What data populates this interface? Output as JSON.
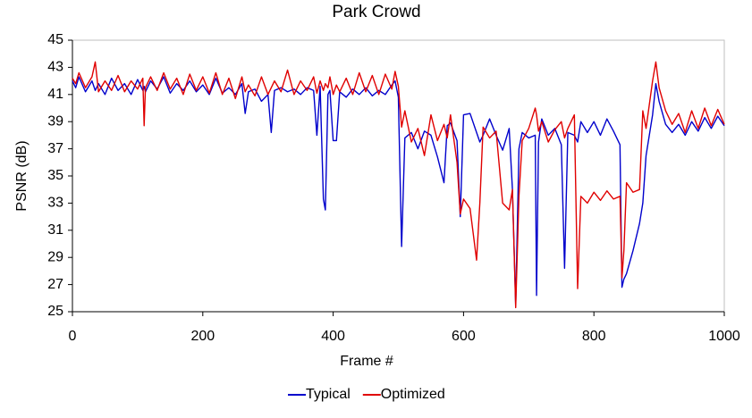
{
  "chart_data": {
    "type": "line",
    "title": "Park Crowd",
    "xlabel": "Frame #",
    "ylabel": "PSNR (dB)",
    "x": [
      0,
      5,
      10,
      20,
      30,
      35,
      40,
      50,
      60,
      70,
      80,
      90,
      100,
      108,
      110,
      112,
      120,
      130,
      140,
      150,
      160,
      170,
      180,
      190,
      200,
      210,
      220,
      230,
      240,
      250,
      260,
      265,
      270,
      280,
      290,
      300,
      305,
      310,
      320,
      330,
      340,
      350,
      360,
      370,
      375,
      380,
      385,
      388,
      392,
      395,
      400,
      405,
      410,
      420,
      430,
      440,
      450,
      460,
      470,
      480,
      490,
      495,
      500,
      505,
      510,
      520,
      530,
      540,
      550,
      560,
      570,
      575,
      580,
      590,
      595,
      600,
      610,
      620,
      625,
      630,
      640,
      650,
      660,
      670,
      675,
      680,
      685,
      690,
      700,
      710,
      712,
      715,
      720,
      730,
      740,
      750,
      755,
      760,
      770,
      775,
      780,
      790,
      800,
      810,
      820,
      830,
      840,
      843,
      846,
      850,
      860,
      870,
      875,
      880,
      890,
      895,
      900,
      910,
      920,
      930,
      940,
      950,
      960,
      970,
      980,
      990,
      1000
    ],
    "series": [
      {
        "name": "Typical",
        "color": "#0000cc",
        "values": [
          42.0,
          41.5,
          42.3,
          41.2,
          42.0,
          41.3,
          41.8,
          41.0,
          42.2,
          41.3,
          41.8,
          41.0,
          42.1,
          41.3,
          41.6,
          41.2,
          42.0,
          41.4,
          42.3,
          41.1,
          41.8,
          41.3,
          42.0,
          41.2,
          41.7,
          41.0,
          42.2,
          41.1,
          41.5,
          41.0,
          41.8,
          39.6,
          41.2,
          41.4,
          40.5,
          41.0,
          38.2,
          41.3,
          41.5,
          41.2,
          41.4,
          41.0,
          41.5,
          41.3,
          38.0,
          41.6,
          33.3,
          32.5,
          41.0,
          41.3,
          37.6,
          37.6,
          41.2,
          40.8,
          41.4,
          41.0,
          41.5,
          40.9,
          41.3,
          41.0,
          41.7,
          42.0,
          40.8,
          29.8,
          37.8,
          38.2,
          37.0,
          38.3,
          38.0,
          36.4,
          34.5,
          38.7,
          38.9,
          37.6,
          32.0,
          39.5,
          39.6,
          38.2,
          37.5,
          38.0,
          39.2,
          38.0,
          36.9,
          38.5,
          34.0,
          25.5,
          37.0,
          38.2,
          37.8,
          38.0,
          26.2,
          37.5,
          39.2,
          38.0,
          38.5,
          37.3,
          28.2,
          38.2,
          38.0,
          37.5,
          39.0,
          38.2,
          39.0,
          38.0,
          39.2,
          38.3,
          37.3,
          26.8,
          27.4,
          27.8,
          29.5,
          31.5,
          33.0,
          36.5,
          39.5,
          41.8,
          40.5,
          38.8,
          38.2,
          38.8,
          38.0,
          39.0,
          38.3,
          39.3,
          38.5,
          39.4,
          38.7
        ]
      },
      {
        "name": "Optimized",
        "color": "#e00000",
        "values": [
          42.2,
          41.8,
          42.6,
          41.5,
          42.3,
          43.4,
          41.2,
          42.0,
          41.3,
          42.4,
          41.2,
          42.0,
          41.4,
          42.2,
          38.7,
          41.5,
          42.3,
          41.3,
          42.6,
          41.4,
          42.2,
          41.0,
          42.5,
          41.3,
          42.3,
          41.1,
          42.6,
          41.0,
          42.2,
          40.7,
          42.3,
          41.2,
          41.7,
          40.9,
          42.3,
          41.0,
          41.5,
          42.0,
          41.2,
          42.8,
          41.0,
          42.0,
          41.3,
          42.3,
          41.1,
          42.0,
          41.3,
          41.8,
          41.5,
          42.3,
          41.0,
          41.7,
          41.2,
          42.2,
          41.0,
          42.6,
          41.2,
          42.4,
          41.0,
          42.5,
          41.4,
          42.7,
          41.6,
          38.6,
          39.8,
          37.5,
          38.5,
          36.5,
          39.5,
          37.6,
          38.8,
          37.8,
          39.5,
          36.0,
          32.2,
          33.3,
          32.6,
          28.8,
          33.0,
          38.6,
          37.8,
          38.3,
          33.0,
          32.5,
          34.0,
          25.3,
          33.5,
          37.6,
          38.5,
          40.0,
          39.5,
          38.3,
          39.0,
          37.5,
          38.4,
          39.0,
          37.8,
          38.5,
          39.5,
          26.7,
          33.5,
          33.0,
          33.8,
          33.2,
          33.9,
          33.3,
          33.5,
          27.5,
          29.5,
          34.5,
          33.8,
          34.0,
          39.8,
          38.5,
          42.0,
          43.4,
          41.5,
          39.8,
          38.8,
          39.6,
          38.2,
          39.8,
          38.5,
          40.0,
          38.7,
          39.9,
          38.8
        ]
      }
    ],
    "xlim": [
      0,
      1000
    ],
    "xticks": [
      0,
      200,
      400,
      600,
      800,
      1000
    ],
    "ylim": [
      25,
      45
    ],
    "yticks": [
      25,
      27,
      29,
      31,
      33,
      35,
      37,
      39,
      41,
      43,
      45
    ],
    "grid": false,
    "legend": "bottom"
  }
}
